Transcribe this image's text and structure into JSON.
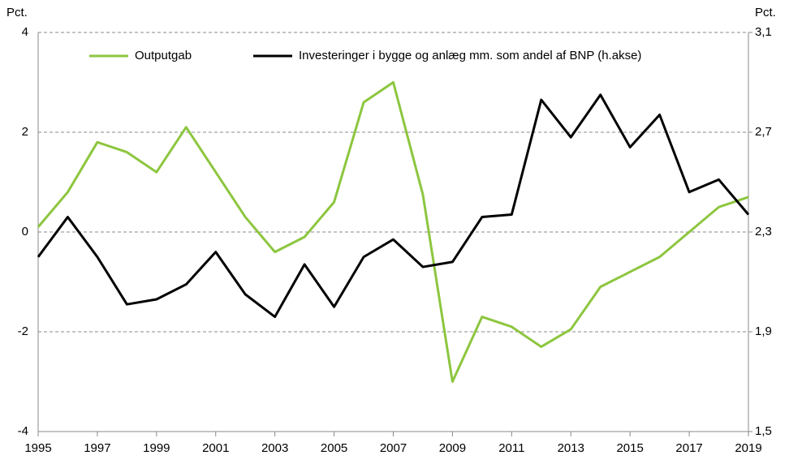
{
  "chart_data": {
    "type": "line",
    "y_label": "Pct.",
    "y2_label": "Pct.",
    "x": [
      1995,
      1996,
      1997,
      1998,
      1999,
      2000,
      2001,
      2002,
      2003,
      2004,
      2005,
      2006,
      2007,
      2008,
      2009,
      2010,
      2011,
      2012,
      2013,
      2014,
      2015,
      2016,
      2017,
      2018,
      2019
    ],
    "xlim": [
      1995,
      2019
    ],
    "xticks": [
      1995,
      1997,
      1999,
      2001,
      2003,
      2005,
      2007,
      2009,
      2011,
      2013,
      2015,
      2017,
      2019
    ],
    "ylim": [
      -4,
      4
    ],
    "yticks": [
      -4,
      -2,
      0,
      2,
      4
    ],
    "y2lim": [
      1.5,
      3.1
    ],
    "y2ticks": [
      {
        "value": 1.5,
        "label": "1,5"
      },
      {
        "value": 1.9,
        "label": "1,9"
      },
      {
        "value": 2.3,
        "label": "2,3"
      },
      {
        "value": 2.7,
        "label": "2,7"
      },
      {
        "value": 3.1,
        "label": "3,1"
      }
    ],
    "grid": true,
    "legend": "top",
    "series": [
      {
        "name": "Outputgab",
        "color": "#8dc63f",
        "axis": "y",
        "values": [
          0.1,
          0.8,
          1.8,
          1.6,
          1.2,
          2.1,
          1.2,
          0.3,
          -0.4,
          -0.1,
          0.6,
          2.6,
          3.0,
          0.75,
          -3.0,
          -1.7,
          -1.9,
          -2.3,
          -1.95,
          -1.1,
          -0.8,
          -0.5,
          0.0,
          0.5,
          0.7
        ]
      },
      {
        "name": "Investeringer i bygge og anlæg mm. som andel af BNP (h.akse)",
        "color": "#000000",
        "axis": "y2",
        "values": [
          2.2,
          2.36,
          2.2,
          2.01,
          2.03,
          2.09,
          2.22,
          2.05,
          1.96,
          2.17,
          2.0,
          2.2,
          2.27,
          2.16,
          2.18,
          2.36,
          2.37,
          2.83,
          2.68,
          2.85,
          2.64,
          2.77,
          2.46,
          2.51,
          2.37
        ]
      }
    ]
  }
}
